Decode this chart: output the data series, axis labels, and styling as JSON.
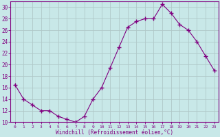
{
  "x": [
    0,
    1,
    2,
    3,
    4,
    5,
    6,
    7,
    8,
    9,
    10,
    11,
    12,
    13,
    14,
    15,
    16,
    17,
    18,
    19,
    20,
    21,
    22,
    23
  ],
  "y": [
    16.5,
    14.0,
    13.0,
    12.0,
    12.0,
    11.0,
    10.5,
    10.0,
    11.0,
    14.0,
    16.0,
    19.5,
    23.0,
    26.5,
    27.5,
    28.0,
    28.0,
    30.5,
    29.0,
    27.0,
    26.0,
    24.0,
    21.5,
    19.0
  ],
  "line_color": "#800080",
  "marker": "+",
  "marker_size": 4,
  "bg_color": "#c8e8e8",
  "grid_color": "#b0c8c8",
  "xlabel": "Windchill (Refroidissement éolien,°C)",
  "xlim": [
    -0.5,
    23.5
  ],
  "ylim": [
    10,
    31
  ],
  "yticks": [
    10,
    12,
    14,
    16,
    18,
    20,
    22,
    24,
    26,
    28,
    30
  ],
  "xticks": [
    0,
    1,
    2,
    3,
    4,
    5,
    6,
    7,
    8,
    9,
    10,
    11,
    12,
    13,
    14,
    15,
    16,
    17,
    18,
    19,
    20,
    21,
    22,
    23
  ],
  "tick_color": "#800080",
  "label_color": "#800080",
  "axis_color": "#800080",
  "xtick_fontsize": 4.5,
  "ytick_fontsize": 5.5,
  "xlabel_fontsize": 5.5
}
